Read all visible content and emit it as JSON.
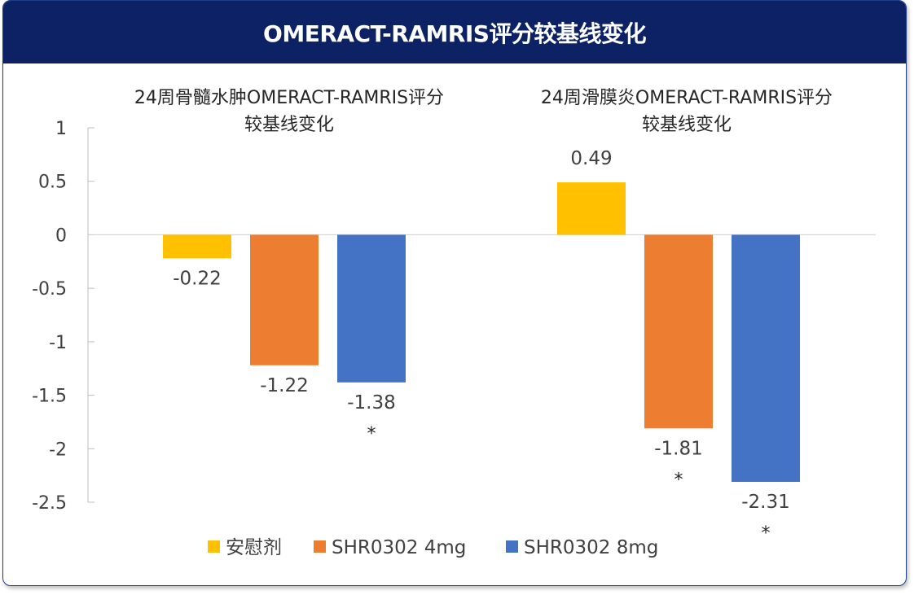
{
  "header": {
    "title": "OMERACT-RAMRIS评分较基线变化"
  },
  "chart_data": {
    "type": "bar",
    "categories": [
      [
        "24周骨髓水肿OMERACT-RAMRIS评分",
        "较基线变化"
      ],
      [
        "24周滑膜炎OMERACT-RAMRIS评分",
        "较基线变化"
      ]
    ],
    "series": [
      {
        "name": "安慰剂",
        "color": "#ffc000",
        "values": [
          -0.22,
          0.49
        ],
        "labels": [
          "-0.22",
          "0.49"
        ],
        "marks": [
          "",
          ""
        ]
      },
      {
        "name": "SHR0302 4mg",
        "color": "#ed7d31",
        "values": [
          -1.22,
          -1.81
        ],
        "labels": [
          "-1.22",
          "-1.81"
        ],
        "marks": [
          "",
          "*"
        ]
      },
      {
        "name": "SHR0302 8mg",
        "color": "#4472c4",
        "values": [
          -1.38,
          -2.31
        ],
        "labels": [
          "-1.38",
          "-2.31"
        ],
        "marks": [
          "*",
          "*"
        ]
      }
    ],
    "ylim": [
      -2.5,
      1
    ],
    "yticks": [
      1,
      0.5,
      0,
      -0.5,
      -1,
      -1.5,
      -2,
      -2.5
    ],
    "ytick_labels": [
      "1",
      "0.5",
      "0",
      "-0.5",
      "-1",
      "-1.5",
      "-2",
      "-2.5"
    ],
    "legend_position": "bottom",
    "grid": false
  }
}
